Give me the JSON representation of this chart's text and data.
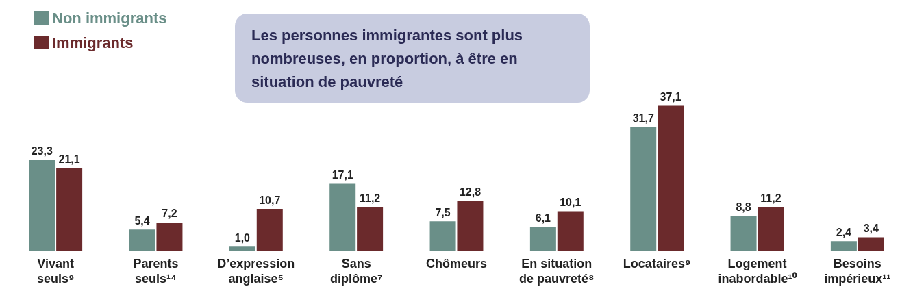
{
  "chart_data": {
    "type": "bar",
    "title": "Les personnes immigrantes sont plus nombreuses, en proportion, à être en situation de pauvreté",
    "categories": [
      "Vivant seuls⁹",
      "Parents seuls¹⁴",
      "D’expression anglaise⁵",
      "Sans diplôme⁷",
      "Chômeurs",
      "En situation de pauvreté⁸",
      "Locataires⁹",
      "Logement inabordable¹⁰",
      "Besoins impérieux¹¹"
    ],
    "series": [
      {
        "name": "Non immigrants",
        "color": "#6a8f88",
        "values": [
          23.3,
          5.4,
          1.0,
          17.1,
          7.5,
          6.1,
          31.7,
          8.8,
          2.4
        ],
        "value_labels": [
          "23,3",
          "5,4",
          "1,0",
          "17,1",
          "7,5",
          "6,1",
          "31,7",
          "8,8",
          "2,4"
        ]
      },
      {
        "name": "Immigrants",
        "color": "#6b2a2c",
        "values": [
          21.1,
          7.2,
          10.7,
          11.2,
          12.8,
          10.1,
          37.1,
          11.2,
          3.4
        ],
        "value_labels": [
          "21,1",
          "7,2",
          "10,7",
          "11,2",
          "12,8",
          "10,1",
          "37,1",
          "11,2",
          "3,4"
        ]
      }
    ],
    "legend": "top left",
    "grid": false
  }
}
